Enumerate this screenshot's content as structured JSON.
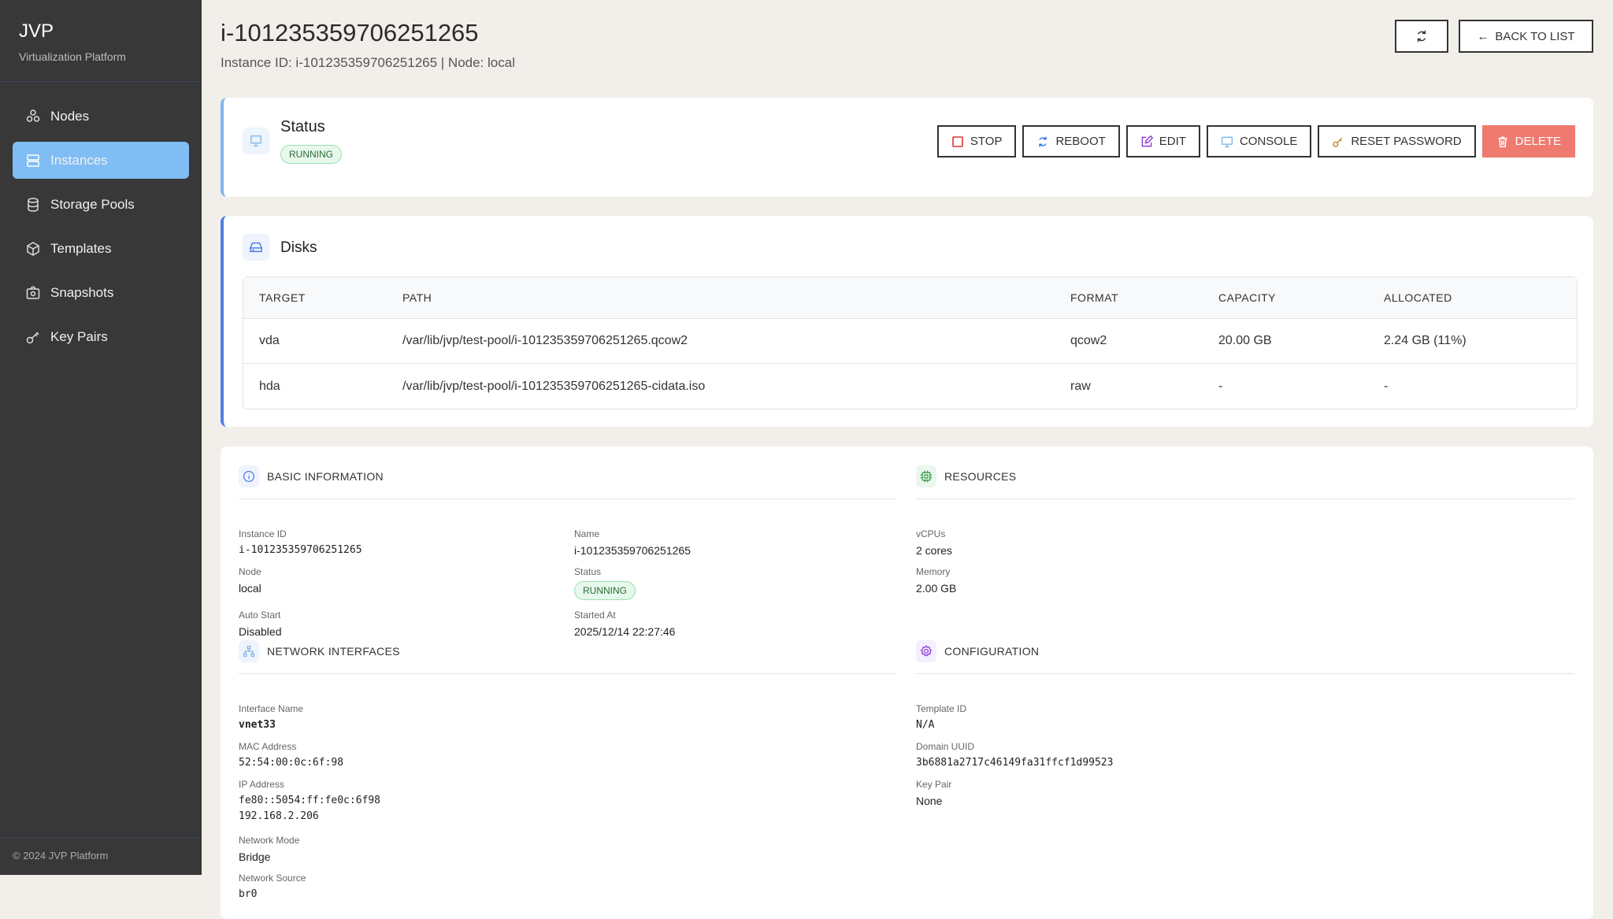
{
  "sidebar": {
    "brand": "JVP",
    "tagline": "Virtualization Platform",
    "items": [
      {
        "label": "Nodes",
        "icon": "nodes-icon"
      },
      {
        "label": "Instances",
        "icon": "server-icon",
        "active": true
      },
      {
        "label": "Storage Pools",
        "icon": "database-icon"
      },
      {
        "label": "Templates",
        "icon": "package-icon"
      },
      {
        "label": "Snapshots",
        "icon": "camera-icon"
      },
      {
        "label": "Key Pairs",
        "icon": "key-icon"
      }
    ],
    "footer": "© 2024 JVP Platform"
  },
  "header": {
    "title": "i-101235359706251265",
    "subtitle": "Instance ID: i-101235359706251265 | Node: local",
    "back_label": "BACK TO LIST"
  },
  "status": {
    "title": "Status",
    "badge": "RUNNING",
    "actions": {
      "stop": "STOP",
      "reboot": "REBOOT",
      "edit": "EDIT",
      "console": "CONSOLE",
      "reset": "RESET PASSWORD",
      "delete": "DELETE"
    }
  },
  "disks": {
    "title": "Disks",
    "columns": [
      "TARGET",
      "PATH",
      "FORMAT",
      "CAPACITY",
      "ALLOCATED"
    ],
    "rows": [
      [
        "vda",
        "/var/lib/jvp/test-pool/i-101235359706251265.qcow2",
        "qcow2",
        "20.00 GB",
        "2.24 GB (11%)"
      ],
      [
        "hda",
        "/var/lib/jvp/test-pool/i-101235359706251265-cidata.iso",
        "raw",
        "-",
        "-"
      ]
    ]
  },
  "basic": {
    "title": "BASIC INFORMATION",
    "instance_id_label": "Instance ID",
    "instance_id": "i-101235359706251265",
    "name_label": "Name",
    "name": "i-101235359706251265",
    "node_label": "Node",
    "node": "local",
    "status_label": "Status",
    "status": "RUNNING",
    "autostart_label": "Auto Start",
    "autostart": "Disabled",
    "started_label": "Started At",
    "started": "2025/12/14 22:27:46"
  },
  "resources": {
    "title": "RESOURCES",
    "vcpus_label": "vCPUs",
    "vcpus": "2 cores",
    "memory_label": "Memory",
    "memory": "2.00 GB"
  },
  "network": {
    "title": "NETWORK INTERFACES",
    "if_label": "Interface Name",
    "if": "vnet33",
    "mac_label": "MAC Address",
    "mac": "52:54:00:0c:6f:98",
    "ip_label": "IP Address",
    "ip6": "fe80::5054:ff:fe0c:6f98",
    "ip4": "192.168.2.206",
    "mode_label": "Network Mode",
    "mode": "Bridge",
    "source_label": "Network Source",
    "source": "br0"
  },
  "config": {
    "title": "CONFIGURATION",
    "template_label": "Template ID",
    "template": "N/A",
    "uuid_label": "Domain UUID",
    "uuid": "3b6881a2717c46149fa31ffcf1d99523",
    "keypair_label": "Key Pair",
    "keypair": "None"
  },
  "colors": {
    "accent": "#80bdf4",
    "delete": "#ee7a70",
    "running_bg": "#e7f8ec"
  }
}
